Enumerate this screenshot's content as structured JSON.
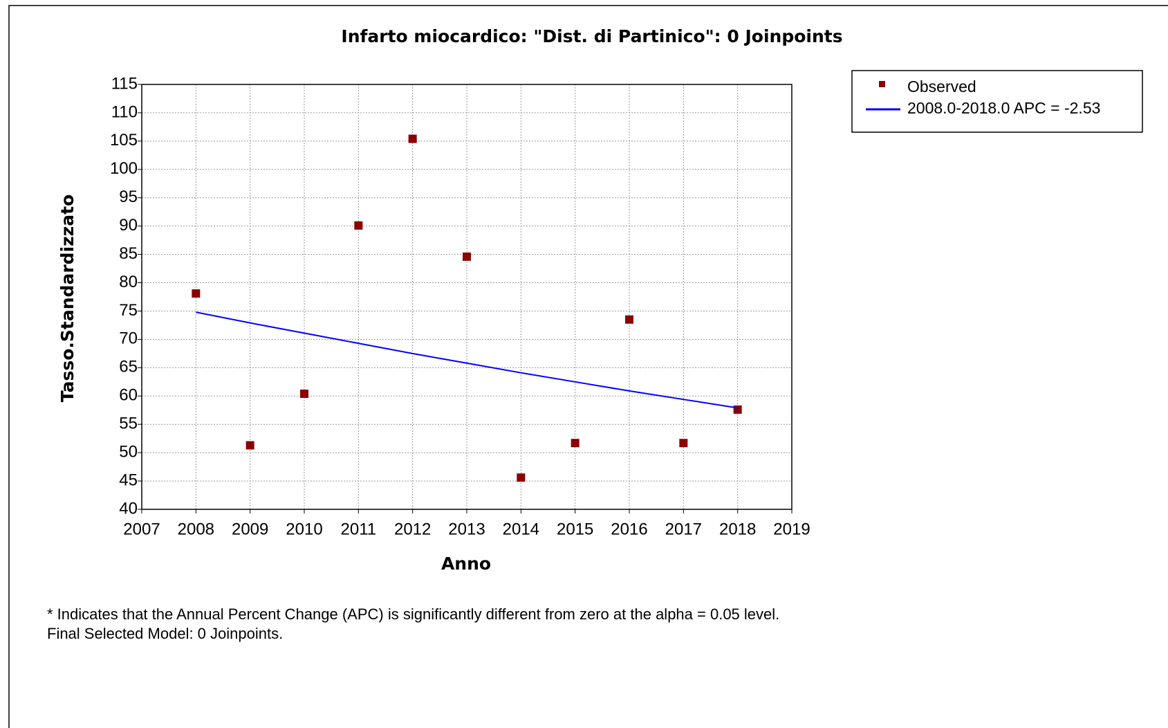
{
  "chart_data": {
    "type": "scatter",
    "title": "Infarto miocardico: \"Dist. di Partinico\": 0 Joinpoints",
    "x_label": "Anno",
    "y_label": "Tasso.Standardizzato",
    "x": [
      2008,
      2009,
      2010,
      2011,
      2012,
      2013,
      2014,
      2015,
      2016,
      2017,
      2018
    ],
    "series": [
      {
        "name": "Observed",
        "color": "#8b0000",
        "style": "markers",
        "values": [
          78.1,
          51.3,
          60.4,
          90.1,
          105.4,
          84.6,
          45.6,
          51.7,
          73.5,
          51.7,
          57.6
        ]
      },
      {
        "name": "2008.0-2018.0 APC  = -2.53",
        "color": "#0000ff",
        "style": "line",
        "values": [
          74.8,
          72.9,
          71.1,
          69.3,
          67.5,
          65.8,
          64.1,
          62.5,
          60.9,
          59.4,
          57.9
        ]
      }
    ],
    "xlim": [
      2007,
      2019
    ],
    "xticks": [
      2007,
      2008,
      2009,
      2010,
      2011,
      2012,
      2013,
      2014,
      2015,
      2016,
      2017,
      2018,
      2019
    ],
    "ylim": [
      40,
      115
    ],
    "yticks": [
      40,
      45,
      50,
      55,
      60,
      65,
      70,
      75,
      80,
      85,
      90,
      95,
      100,
      105,
      110,
      115
    ],
    "grid": true,
    "legend": "outside-right",
    "notes": [
      "* Indicates that the Annual Percent Change (APC) is significantly different from zero at the alpha = 0.05 level.",
      "Final Selected Model: 0 Joinpoints."
    ]
  }
}
